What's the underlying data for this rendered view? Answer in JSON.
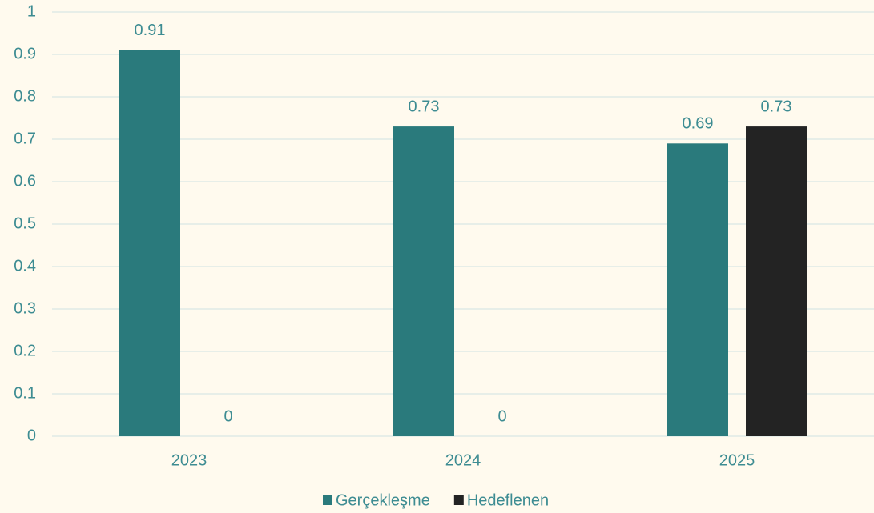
{
  "chart_data": {
    "type": "bar",
    "categories": [
      "2023",
      "2024",
      "2025"
    ],
    "series": [
      {
        "name": "Gerçekleşme",
        "color": "#2a7a7c",
        "values": [
          0.91,
          0.73,
          0.69
        ]
      },
      {
        "name": "Hedeflenen",
        "color": "#232323",
        "values": [
          0,
          0,
          0.73
        ]
      }
    ],
    "ylim": [
      0,
      1
    ],
    "yticks": [
      0,
      0.1,
      0.2,
      0.3,
      0.4,
      0.5,
      0.6,
      0.7,
      0.8,
      0.9,
      1
    ],
    "grid": true,
    "legend": "bottom"
  }
}
